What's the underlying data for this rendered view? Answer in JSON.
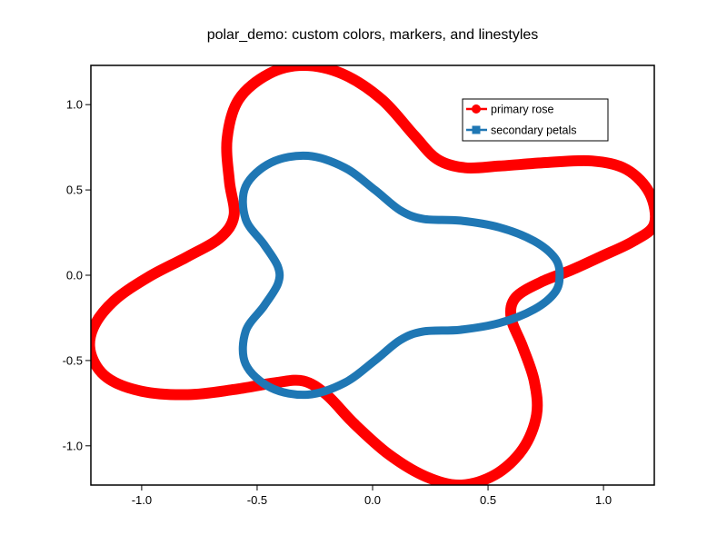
{
  "chart_data": {
    "type": "line",
    "title": "polar_demo: custom colors, markers, and linestyles",
    "xlabel": "",
    "ylabel": "",
    "xlim": [
      -1.22,
      1.22
    ],
    "ylim": [
      -1.23,
      1.23
    ],
    "xticks": [
      -1.0,
      -0.5,
      0.0,
      0.5,
      1.0
    ],
    "xtick_labels": [
      "-1.0",
      "-0.5",
      "0.0",
      "0.5",
      "1.0"
    ],
    "yticks": [
      -1.0,
      -0.5,
      0.0,
      0.5,
      1.0
    ],
    "ytick_labels": [
      "-1.0",
      "-0.5",
      "0.0",
      "0.5",
      "1.0"
    ],
    "grid": false,
    "legend": "top-right",
    "series": [
      {
        "name": "primary rose",
        "color": "#ff0000",
        "marker": "circle",
        "points": [
          [
            1.22,
            0.3
          ],
          [
            1.13,
            0.2
          ],
          [
            0.99,
            0.11
          ],
          [
            0.86,
            0.03
          ],
          [
            0.73,
            -0.04
          ],
          [
            0.62,
            -0.13
          ],
          [
            0.6,
            -0.25
          ],
          [
            0.65,
            -0.42
          ],
          [
            0.7,
            -0.62
          ],
          [
            0.71,
            -0.82
          ],
          [
            0.65,
            -1.02
          ],
          [
            0.53,
            -1.17
          ],
          [
            0.38,
            -1.23
          ],
          [
            0.23,
            -1.18
          ],
          [
            0.07,
            -1.05
          ],
          [
            -0.08,
            -0.87
          ],
          [
            -0.2,
            -0.7
          ],
          [
            -0.3,
            -0.62
          ],
          [
            -0.42,
            -0.63
          ],
          [
            -0.6,
            -0.67
          ],
          [
            -0.8,
            -0.7
          ],
          [
            -1.0,
            -0.68
          ],
          [
            -1.15,
            -0.6
          ],
          [
            -1.22,
            -0.46
          ],
          [
            -1.21,
            -0.31
          ],
          [
            -1.12,
            -0.15
          ],
          [
            -0.97,
            -0.01
          ],
          [
            -0.8,
            0.11
          ],
          [
            -0.66,
            0.22
          ],
          [
            -0.6,
            0.35
          ],
          [
            -0.62,
            0.55
          ],
          [
            -0.63,
            0.8
          ],
          [
            -0.58,
            1.03
          ],
          [
            -0.45,
            1.18
          ],
          [
            -0.3,
            1.23
          ],
          [
            -0.13,
            1.18
          ],
          [
            0.04,
            1.03
          ],
          [
            0.18,
            0.82
          ],
          [
            0.28,
            0.68
          ],
          [
            0.4,
            0.63
          ],
          [
            0.55,
            0.64
          ],
          [
            0.75,
            0.66
          ],
          [
            0.95,
            0.67
          ],
          [
            1.1,
            0.62
          ],
          [
            1.2,
            0.48
          ],
          [
            1.22,
            0.3
          ]
        ]
      },
      {
        "name": "secondary petals",
        "color": "#1f77b4",
        "marker": "square",
        "points": [
          [
            0.81,
            0.0
          ],
          [
            0.79,
            -0.1
          ],
          [
            0.7,
            -0.2
          ],
          [
            0.55,
            -0.28
          ],
          [
            0.38,
            -0.32
          ],
          [
            0.22,
            -0.33
          ],
          [
            0.12,
            -0.38
          ],
          [
            0.01,
            -0.5
          ],
          [
            -0.12,
            -0.63
          ],
          [
            -0.28,
            -0.7
          ],
          [
            -0.44,
            -0.66
          ],
          [
            -0.55,
            -0.52
          ],
          [
            -0.55,
            -0.33
          ],
          [
            -0.47,
            -0.18
          ],
          [
            -0.41,
            -0.05
          ],
          [
            -0.41,
            0.05
          ],
          [
            -0.47,
            0.18
          ],
          [
            -0.55,
            0.33
          ],
          [
            -0.55,
            0.52
          ],
          [
            -0.44,
            0.66
          ],
          [
            -0.28,
            0.7
          ],
          [
            -0.12,
            0.63
          ],
          [
            0.01,
            0.5
          ],
          [
            0.12,
            0.38
          ],
          [
            0.22,
            0.33
          ],
          [
            0.38,
            0.32
          ],
          [
            0.55,
            0.28
          ],
          [
            0.7,
            0.2
          ],
          [
            0.79,
            0.1
          ],
          [
            0.81,
            0.0
          ]
        ]
      }
    ]
  }
}
